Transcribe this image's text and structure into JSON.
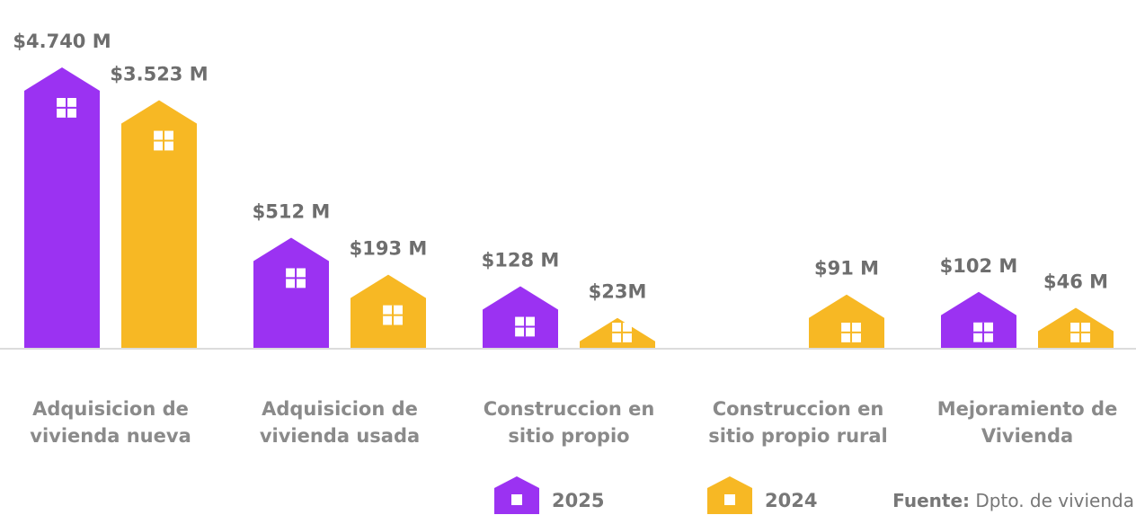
{
  "chart_data": {
    "type": "bar",
    "categories": [
      "Adquisicion de vivienda nueva",
      "Adquisicion de vivienda usada",
      "Construccion en sitio propio",
      "Construccion en sitio propio rural",
      "Mejoramiento de Vivienda"
    ],
    "series": [
      {
        "name": "2025",
        "color": "#9b32f2",
        "values": [
          4740,
          512,
          128,
          null,
          102
        ],
        "value_labels": [
          "$4.740 M",
          "$512 M",
          "$128 M",
          null,
          "$102 M"
        ]
      },
      {
        "name": "2024",
        "color": "#f7b824",
        "values": [
          3523,
          193,
          23,
          91,
          46
        ],
        "value_labels": [
          "$3.523 M",
          "$193 M",
          "$23M",
          "$91 M",
          "$46 M"
        ]
      }
    ],
    "source_label": "Fuente:",
    "source": "Dpto. de vivienda"
  }
}
